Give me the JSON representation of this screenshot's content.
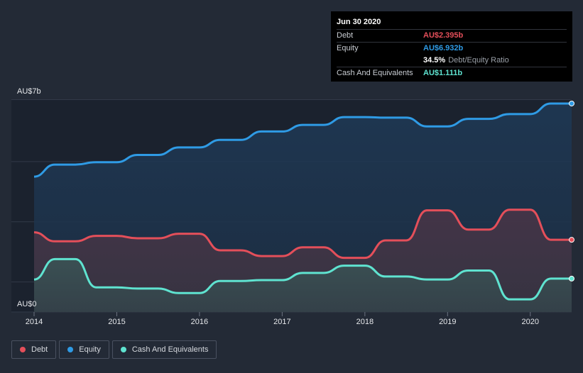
{
  "tooltip": {
    "date": "Jun 30 2020",
    "rows": [
      {
        "label": "Debt",
        "value": "AU$2.395b",
        "color": "#e44f5a"
      },
      {
        "label": "Equity",
        "value": "AU$6.932b",
        "color": "#2f9be5"
      },
      {
        "label": "",
        "value": "34.5%",
        "suffix": "Debt/Equity Ratio"
      },
      {
        "label": "Cash And Equivalents",
        "value": "AU$1.111b",
        "color": "#5fe3d0"
      }
    ]
  },
  "legend": [
    {
      "name": "Debt",
      "color": "#e44f5a"
    },
    {
      "name": "Equity",
      "color": "#2f9be5"
    },
    {
      "name": "Cash And Equivalents",
      "color": "#5fe3d0"
    }
  ],
  "chart_data": {
    "type": "area",
    "title": "",
    "xlabel": "",
    "ylabel": "",
    "ylim": [
      0,
      7
    ],
    "xlim": [
      2014.0,
      2020.5
    ],
    "y_tick_labels": [
      "AU$0",
      "AU$7b"
    ],
    "x_ticks": [
      "2014",
      "2015",
      "2016",
      "2017",
      "2018",
      "2019",
      "2020"
    ],
    "series": [
      {
        "name": "Equity",
        "color": "#2f9be5",
        "points": [
          [
            2014.0,
            4.5
          ],
          [
            2014.25,
            4.9
          ],
          [
            2014.5,
            4.9
          ],
          [
            2014.75,
            4.98
          ],
          [
            2015.0,
            4.98
          ],
          [
            2015.25,
            5.22
          ],
          [
            2015.5,
            5.22
          ],
          [
            2015.75,
            5.47
          ],
          [
            2016.0,
            5.47
          ],
          [
            2016.25,
            5.72
          ],
          [
            2016.5,
            5.72
          ],
          [
            2016.75,
            6.0
          ],
          [
            2017.0,
            6.0
          ],
          [
            2017.25,
            6.22
          ],
          [
            2017.5,
            6.22
          ],
          [
            2017.75,
            6.48
          ],
          [
            2018.0,
            6.48
          ],
          [
            2018.25,
            6.46
          ],
          [
            2018.5,
            6.46
          ],
          [
            2018.75,
            6.17
          ],
          [
            2019.0,
            6.17
          ],
          [
            2019.25,
            6.42
          ],
          [
            2019.5,
            6.42
          ],
          [
            2019.75,
            6.58
          ],
          [
            2020.0,
            6.58
          ],
          [
            2020.25,
            6.93
          ],
          [
            2020.5,
            6.93
          ]
        ]
      },
      {
        "name": "Debt",
        "color": "#e44f5a",
        "points": [
          [
            2014.0,
            2.65
          ],
          [
            2014.25,
            2.35
          ],
          [
            2014.5,
            2.35
          ],
          [
            2014.75,
            2.53
          ],
          [
            2015.0,
            2.53
          ],
          [
            2015.25,
            2.45
          ],
          [
            2015.5,
            2.45
          ],
          [
            2015.75,
            2.6
          ],
          [
            2016.0,
            2.6
          ],
          [
            2016.25,
            2.05
          ],
          [
            2016.5,
            2.05
          ],
          [
            2016.75,
            1.86
          ],
          [
            2017.0,
            1.86
          ],
          [
            2017.25,
            2.15
          ],
          [
            2017.5,
            2.15
          ],
          [
            2017.75,
            1.8
          ],
          [
            2018.0,
            1.8
          ],
          [
            2018.25,
            2.38
          ],
          [
            2018.5,
            2.38
          ],
          [
            2018.75,
            3.38
          ],
          [
            2019.0,
            3.38
          ],
          [
            2019.25,
            2.74
          ],
          [
            2019.5,
            2.74
          ],
          [
            2019.75,
            3.4
          ],
          [
            2020.0,
            3.4
          ],
          [
            2020.25,
            2.4
          ],
          [
            2020.5,
            2.4
          ]
        ]
      },
      {
        "name": "Cash And Equivalents",
        "color": "#5fe3d0",
        "points": [
          [
            2014.0,
            1.08
          ],
          [
            2014.25,
            1.76
          ],
          [
            2014.5,
            1.76
          ],
          [
            2014.75,
            0.82
          ],
          [
            2015.0,
            0.82
          ],
          [
            2015.25,
            0.78
          ],
          [
            2015.5,
            0.78
          ],
          [
            2015.75,
            0.63
          ],
          [
            2016.0,
            0.63
          ],
          [
            2016.25,
            1.03
          ],
          [
            2016.5,
            1.03
          ],
          [
            2016.75,
            1.06
          ],
          [
            2017.0,
            1.06
          ],
          [
            2017.25,
            1.3
          ],
          [
            2017.5,
            1.3
          ],
          [
            2017.75,
            1.54
          ],
          [
            2018.0,
            1.54
          ],
          [
            2018.25,
            1.18
          ],
          [
            2018.5,
            1.18
          ],
          [
            2018.75,
            1.08
          ],
          [
            2019.0,
            1.08
          ],
          [
            2019.25,
            1.38
          ],
          [
            2019.5,
            1.38
          ],
          [
            2019.75,
            0.42
          ],
          [
            2020.0,
            0.42
          ],
          [
            2020.25,
            1.11
          ],
          [
            2020.5,
            1.11
          ]
        ]
      }
    ]
  }
}
